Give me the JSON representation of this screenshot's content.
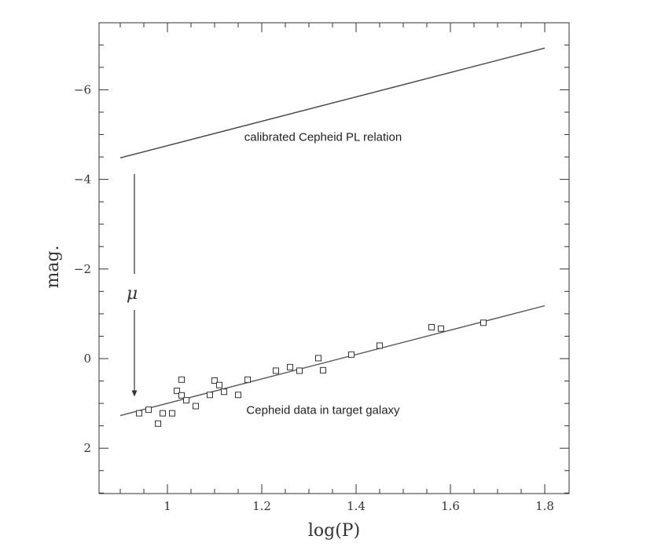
{
  "chart_data": {
    "type": "scatter",
    "xlabel": "log(P)",
    "ylabel": "mag.",
    "xlim": [
      0.85,
      1.85
    ],
    "ylim": [
      3.0,
      -7.5
    ],
    "y_inverted": true,
    "xticks": [
      1,
      1.2,
      1.4,
      1.6,
      1.8
    ],
    "xtick_labels": [
      "1",
      "1.2",
      "1.4",
      "1.6",
      "1.8"
    ],
    "yticks": [
      -6,
      -4,
      -2,
      0,
      2
    ],
    "ytick_labels": [
      "−6",
      "−4",
      "−2",
      "0",
      "2"
    ],
    "grid": false,
    "series": [
      {
        "kind": "line",
        "x": [
          0.9,
          1.8
        ],
        "y": [
          -4.48,
          -6.93
        ],
        "color": "#444444"
      },
      {
        "kind": "line",
        "x": [
          0.9,
          1.8
        ],
        "y": [
          1.27,
          -1.18
        ],
        "color": "#555555"
      },
      {
        "kind": "points",
        "marker": "square",
        "x": [
          0.94,
          0.96,
          0.98,
          0.99,
          1.01,
          1.02,
          1.03,
          1.03,
          1.04,
          1.06,
          1.09,
          1.1,
          1.11,
          1.12,
          1.15,
          1.17,
          1.23,
          1.26,
          1.28,
          1.32,
          1.33,
          1.39,
          1.45,
          1.56,
          1.58,
          1.67
        ],
        "y": [
          1.22,
          1.14,
          1.45,
          1.22,
          1.22,
          0.72,
          0.82,
          0.47,
          0.93,
          1.06,
          0.81,
          0.49,
          0.59,
          0.74,
          0.81,
          0.47,
          0.27,
          0.19,
          0.27,
          -0.01,
          0.26,
          -0.09,
          -0.29,
          -0.7,
          -0.67,
          -0.8
        ]
      }
    ],
    "annotations": [
      {
        "text": "calibrated Cepheid PL relation",
        "x": 1.33,
        "y": -4.95
      },
      {
        "text": "Cepheid data in target galaxy",
        "x": 1.33,
        "y": 1.15
      },
      {
        "text": "μ",
        "x": 0.925,
        "y": -1.45
      }
    ],
    "arrow": {
      "x": 0.93,
      "y_from": -4.12,
      "y_to": 0.85
    }
  }
}
